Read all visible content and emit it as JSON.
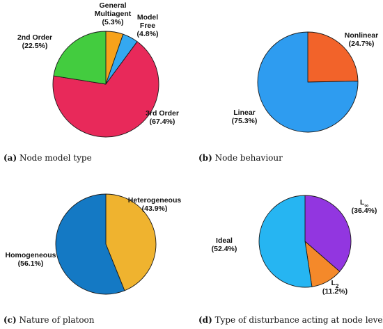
{
  "chart_data": [
    {
      "type": "pie",
      "caption_letter": "(a)",
      "caption_text": " Node model type",
      "slices": [
        {
          "label": [
            "General",
            "Multiagent",
            "(5.3%)"
          ],
          "value": 5.3,
          "color": "#f7a21b"
        },
        {
          "label": [
            "Model",
            "Free",
            "(4.8%)"
          ],
          "value": 4.8,
          "color": "#34a8f0"
        },
        {
          "label": [
            "3rd Order",
            "(67.4%)"
          ],
          "value": 67.4,
          "color": "#e8295a"
        },
        {
          "label": [
            "2nd Order",
            "(22.5%)"
          ],
          "value": 22.5,
          "color": "#43cc3f"
        }
      ]
    },
    {
      "type": "pie",
      "caption_letter": "(b)",
      "caption_text": " Node behaviour",
      "slices": [
        {
          "label": [
            "Nonlinear",
            "(24.7%)"
          ],
          "value": 24.7,
          "color": "#f2632a"
        },
        {
          "label": [
            "Linear",
            "(75.3%)"
          ],
          "value": 75.3,
          "color": "#2e9cf0"
        }
      ]
    },
    {
      "type": "pie",
      "caption_letter": "(c)",
      "caption_text": " Nature of platoon",
      "slices": [
        {
          "label": [
            "Heterogeneous",
            "(43.9%)"
          ],
          "value": 43.9,
          "color": "#efb32f"
        },
        {
          "label": [
            "Homogeneous",
            "(56.1%)"
          ],
          "value": 56.1,
          "color": "#1479c4"
        }
      ]
    },
    {
      "type": "pie",
      "caption_letter": "(d)",
      "caption_text": " Type of disturbance acting at node level",
      "slices": [
        {
          "label": [
            "L∞",
            "(36.4%)"
          ],
          "value": 36.4,
          "color": "#9236e0"
        },
        {
          "label": [
            "L2",
            "(11.2%)"
          ],
          "value": 11.2,
          "color": "#f4892a"
        },
        {
          "label": [
            "Ideal",
            "(52.4%)"
          ],
          "value": 52.4,
          "color": "#26b5f2"
        }
      ]
    }
  ]
}
